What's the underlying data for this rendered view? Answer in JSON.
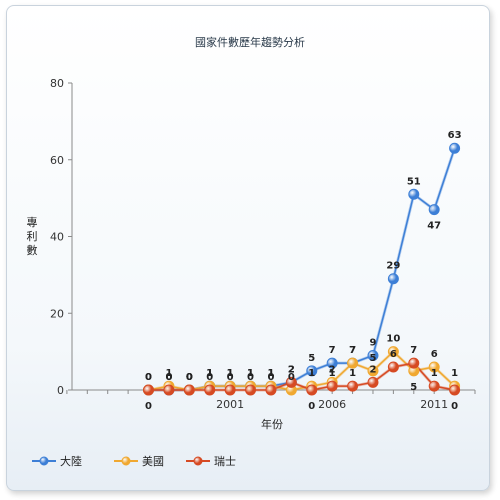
{
  "chart_data": {
    "type": "line",
    "title": "國家件數歷年趨勢分析",
    "xlabel": "年份",
    "ylabel": "專利數",
    "ylim": [
      0,
      80
    ],
    "yticks": [
      "0",
      "20",
      "40",
      "60",
      "80"
    ],
    "x": [
      1993,
      1994,
      1995,
      1996,
      1997,
      1998,
      1999,
      2000,
      2001,
      2002,
      2003,
      2004,
      2005,
      2006,
      2007,
      2008,
      2009,
      2010,
      2011,
      2012,
      2013
    ],
    "xticks": [
      {
        "value": 2001,
        "label": "2001"
      },
      {
        "value": 2006,
        "label": "2006"
      },
      {
        "value": 2011,
        "label": "2011"
      }
    ],
    "series": [
      {
        "name": "大陸",
        "color": "#3d7fd6",
        "x": [
          1997,
          1998,
          1999,
          2000,
          2001,
          2002,
          2003,
          2004,
          2005,
          2006,
          2007,
          2008,
          2009,
          2010,
          2011,
          2012
        ],
        "values": [
          0,
          0,
          0,
          1,
          1,
          1,
          1,
          2,
          5,
          7,
          7,
          9,
          29,
          51,
          47,
          63
        ],
        "label_pos": [
          "above",
          "above",
          "above",
          "above",
          "above",
          "above",
          "above",
          "above",
          "above",
          "above",
          "above",
          "above",
          "above",
          "above",
          "below",
          "above"
        ]
      },
      {
        "name": "美國",
        "color": "#f0a830",
        "x": [
          1997,
          1998,
          1999,
          2000,
          2001,
          2002,
          2003,
          2004,
          2005,
          2006,
          2007,
          2008,
          2009,
          2010,
          2011,
          2012
        ],
        "values": [
          0,
          1,
          0,
          1,
          1,
          1,
          1,
          0,
          1,
          2,
          7,
          5,
          10,
          5,
          6,
          1
        ],
        "label_pos": [
          "below",
          "above",
          "above",
          "above",
          "above",
          "above",
          "above",
          "above",
          "above",
          "above",
          "above",
          "above",
          "above",
          "below",
          "above",
          "above"
        ]
      },
      {
        "name": "瑞士",
        "color": "#d64a23",
        "x": [
          1997,
          1998,
          1999,
          2000,
          2001,
          2002,
          2003,
          2004,
          2005,
          2006,
          2007,
          2008,
          2009,
          2010,
          2011,
          2012
        ],
        "values": [
          0,
          0,
          0,
          0,
          0,
          0,
          0,
          2,
          0,
          1,
          1,
          2,
          6,
          7,
          1,
          0
        ],
        "label_pos": [
          "above",
          "above",
          "above",
          "above",
          "above",
          "above",
          "above",
          "above",
          "below",
          "above",
          "above",
          "above",
          "above",
          "above",
          "above",
          "below"
        ]
      }
    ],
    "grid": false,
    "legend": "bottom-left"
  }
}
